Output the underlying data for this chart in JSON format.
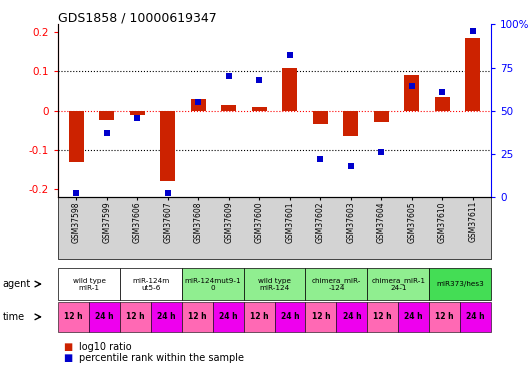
{
  "title": "GDS1858 / 10000619347",
  "samples": [
    "GSM37598",
    "GSM37599",
    "GSM37606",
    "GSM37607",
    "GSM37608",
    "GSM37609",
    "GSM37600",
    "GSM37601",
    "GSM37602",
    "GSM37603",
    "GSM37604",
    "GSM37605",
    "GSM37610",
    "GSM37611"
  ],
  "log10_ratio": [
    -0.13,
    -0.025,
    -0.01,
    -0.18,
    0.03,
    0.015,
    0.01,
    0.11,
    -0.035,
    -0.065,
    -0.03,
    0.09,
    0.035,
    0.185
  ],
  "percentile_rank": [
    2,
    37,
    46,
    2,
    55,
    70,
    68,
    82,
    22,
    18,
    26,
    64,
    61,
    96
  ],
  "agents": [
    {
      "label": "wild type\nmiR-1",
      "cols": [
        0,
        1
      ],
      "color": "#ffffff"
    },
    {
      "label": "miR-124m\nut5-6",
      "cols": [
        2,
        3
      ],
      "color": "#ffffff"
    },
    {
      "label": "miR-124mut9-1\n0",
      "cols": [
        4,
        5
      ],
      "color": "#90ee90"
    },
    {
      "label": "wild type\nmiR-124",
      "cols": [
        6,
        7
      ],
      "color": "#90ee90"
    },
    {
      "label": "chimera_miR-\n-124",
      "cols": [
        8,
        9
      ],
      "color": "#90ee90"
    },
    {
      "label": "chimera_miR-1\n24-1",
      "cols": [
        10,
        11
      ],
      "color": "#90ee90"
    },
    {
      "label": "miR373/hes3",
      "cols": [
        12,
        13
      ],
      "color": "#44dd55"
    }
  ],
  "bar_color": "#cc2200",
  "dot_color": "#0000cc",
  "ylim_left": [
    -0.22,
    0.22
  ],
  "ylim_right": [
    0,
    100
  ],
  "yticks_left": [
    -0.2,
    -0.1,
    0.0,
    0.1,
    0.2
  ],
  "ytick_left_labels": [
    "-0.2",
    "-0.1",
    "0",
    "0.1",
    "0.2"
  ],
  "yticks_right": [
    0,
    25,
    50,
    75,
    100
  ],
  "ytick_right_labels": [
    "0",
    "25",
    "50",
    "75",
    "100%"
  ],
  "hlines": [
    0.1,
    -0.1
  ],
  "bg_color": "#ffffff",
  "sample_bg": "#d3d3d3",
  "agent_white": "#ffffff",
  "agent_green": "#90ee90",
  "agent_brightgreen": "#44dd55",
  "time_pink": "#ff69b4",
  "time_magenta": "#ee00ee",
  "border_color": "#000000"
}
